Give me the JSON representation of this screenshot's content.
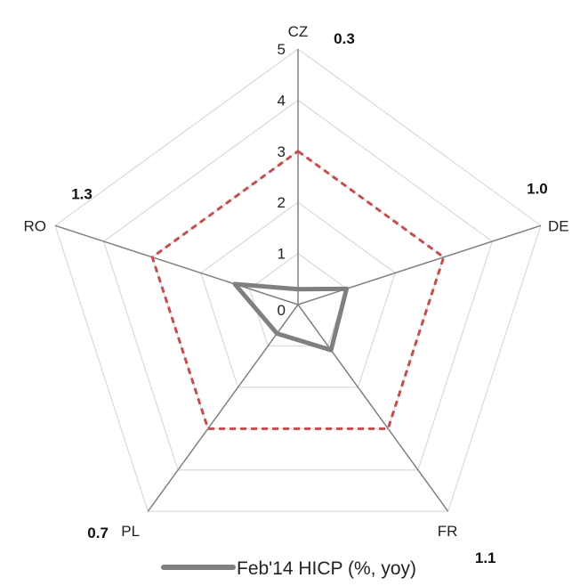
{
  "chart_data": {
    "type": "radar",
    "categories": [
      "CZ",
      "DE",
      "FR",
      "PL",
      "RO"
    ],
    "series": [
      {
        "name": "Feb'14 HICP (%, yoy)",
        "values": [
          0.3,
          1.0,
          1.1,
          0.7,
          1.3
        ],
        "color": "#7f7f7f",
        "style": "solid"
      },
      {
        "values": [
          3,
          3,
          3,
          3,
          3
        ],
        "color": "#c0504d",
        "style": "dashed"
      }
    ],
    "data_labels": [
      "0.3",
      "1.0",
      "1.1",
      "0.7",
      "1.3"
    ],
    "radial_ticks": [
      "0",
      "1",
      "2",
      "3",
      "4",
      "5"
    ],
    "rlim": [
      0,
      5
    ],
    "grid": true,
    "legend_position": "bottom",
    "colors": {
      "gridline": "#d9d9d9",
      "axis": "#808080"
    }
  }
}
